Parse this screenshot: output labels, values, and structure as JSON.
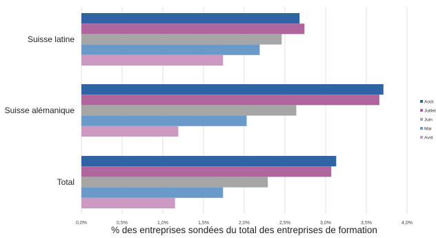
{
  "chart_data": {
    "type": "bar",
    "orientation": "horizontal",
    "title": "",
    "xlabel": "% des entreprises sondées du total des entreprises de formation",
    "ylabel": "",
    "categories": [
      "Suisse latine",
      "Suisse alémanique",
      "Total"
    ],
    "series": [
      {
        "name": "Août",
        "color": "#2e64a6",
        "values": [
          2.68,
          3.71,
          3.13
        ]
      },
      {
        "name": "Juillet",
        "color": "#b0659f",
        "values": [
          2.74,
          3.66,
          3.07
        ]
      },
      {
        "name": "Juin",
        "color": "#a6a6a6",
        "values": [
          2.46,
          2.64,
          2.29
        ]
      },
      {
        "name": "Mai",
        "color": "#6a9ac9",
        "values": [
          2.19,
          2.03,
          1.74
        ]
      },
      {
        "name": "Avril",
        "color": "#cc99c2",
        "values": [
          1.74,
          1.19,
          1.15
        ]
      }
    ],
    "xlim": [
      0,
      4.0
    ],
    "x_ticks": [
      "0,0%",
      "0,5%",
      "1,0%",
      "1,5%",
      "2,0%",
      "2,5%",
      "3,0%",
      "3,5%",
      "4,0%"
    ],
    "grid": true,
    "legend_position": "right"
  }
}
